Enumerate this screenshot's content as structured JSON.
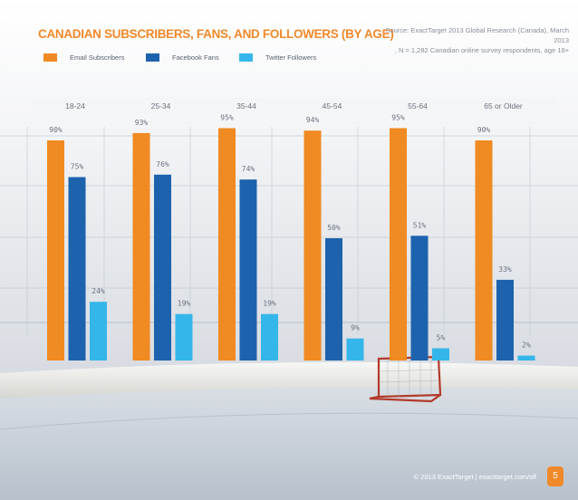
{
  "chart_data": {
    "type": "bar",
    "title": "CANADIAN SUBSCRIBERS, FANS, AND FOLLOWERS (BY AGE)",
    "categories": [
      "18-24",
      "25-34",
      "35-44",
      "45-54",
      "55-64",
      "65 or Older"
    ],
    "series": [
      {
        "name": "Email Subscribers",
        "color": "#f08a22",
        "values": [
          90,
          93,
          95,
          94,
          95,
          90
        ]
      },
      {
        "name": "Facebook Fans",
        "color": "#1d62ad",
        "values": [
          75,
          76,
          74,
          50,
          51,
          33
        ]
      },
      {
        "name": "Twitter Followers",
        "color": "#35b6ea",
        "values": [
          24,
          19,
          19,
          9,
          5,
          2
        ]
      }
    ],
    "value_suffix": "%",
    "ylim": [
      0,
      100
    ],
    "legend": "top-left"
  },
  "source": {
    "line1": "Source: ExactTarget 2013 Global Research (Canada), March 2013",
    "line2": ", N = 1,282 Canadian online survey respondents, age 18+"
  },
  "footer": {
    "copyright": "© 2013 ExactTarget  |  exacttarget.com/sff",
    "page_number": "5"
  },
  "colors": {
    "title": "#f0892a",
    "accent": "#f0892a"
  }
}
